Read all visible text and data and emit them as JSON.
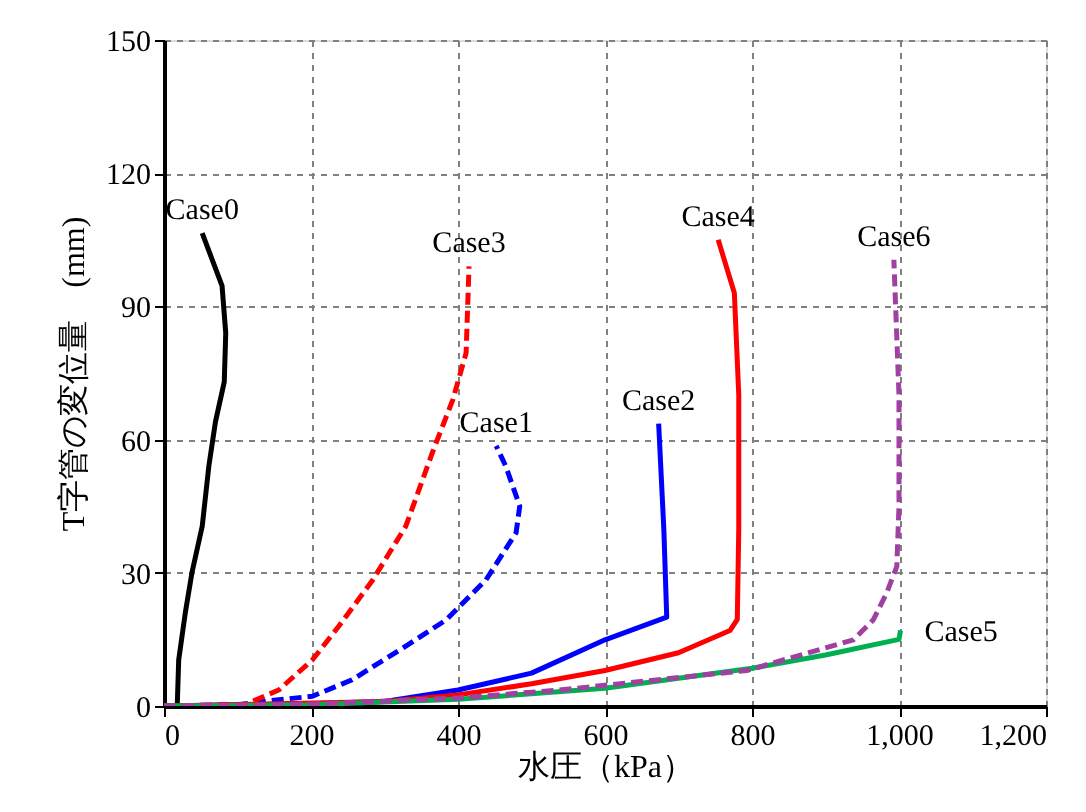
{
  "chart_data": {
    "type": "line",
    "xlabel": "水圧（kPa）",
    "ylabel": "T字管の変位量　(mm)",
    "xlim": [
      0,
      1200
    ],
    "ylim": [
      0,
      150
    ],
    "xticks": [
      0,
      200,
      400,
      600,
      800,
      {
        "value": 1000,
        "label": "1,000"
      },
      {
        "value": 1200,
        "label": "1,200"
      }
    ],
    "yticks": [
      0,
      30,
      60,
      90,
      120,
      150
    ],
    "grid": true,
    "series": [
      {
        "name": "Case0",
        "color": "#000000",
        "line_style": "solid",
        "x": [
          18,
          20,
          29,
          38,
          52,
          61,
          70,
          82,
          84,
          79,
          52
        ],
        "values": [
          0,
          10.4,
          21,
          30,
          40.5,
          54,
          64,
          73,
          84,
          94.6,
          106.5
        ]
      },
      {
        "name": "Case1",
        "color": "#0000ff",
        "line_style": "dashed",
        "x": [
          0,
          100,
          156,
          202,
          256,
          329,
          384,
          438,
          479,
          484,
          465,
          452
        ],
        "values": [
          0,
          0.3,
          1.4,
          2.2,
          5.9,
          13.5,
          19.4,
          28.4,
          39,
          45,
          54,
          58.6
        ]
      },
      {
        "name": "Case2",
        "color": "#0000ff",
        "line_style": "solid",
        "x": [
          0,
          200,
          300,
          400,
          500,
          600,
          684,
          680,
          673
        ],
        "values": [
          0,
          0.5,
          1,
          3.6,
          7.4,
          14.9,
          20,
          40,
          63.6
        ]
      },
      {
        "name": "Case3",
        "color": "#ff0000",
        "line_style": "dashed",
        "x": [
          0,
          110,
          156,
          202,
          238,
          284,
          329,
          365,
          393,
          411,
          415
        ],
        "values": [
          0,
          0.3,
          3.6,
          10.4,
          18,
          28.4,
          40.5,
          57,
          69,
          79.5,
          99
        ]
      },
      {
        "name": "Case4",
        "color": "#ff0000",
        "line_style": "solid",
        "x": [
          0,
          300,
          400,
          500,
          600,
          700,
          770,
          780,
          782,
          782,
          776,
          754
        ],
        "values": [
          0,
          1,
          2.5,
          5,
          8,
          12,
          17,
          19.5,
          40,
          70,
          93,
          105
        ]
      },
      {
        "name": "Case5",
        "color": "#00b050",
        "line_style": "solid",
        "x": [
          0,
          200,
          400,
          600,
          800,
          900,
          1000,
          1002
        ],
        "values": [
          0,
          0.3,
          1.5,
          4,
          8.5,
          11.5,
          15,
          17
        ]
      },
      {
        "name": "Case6",
        "color": "#a040a0",
        "line_style": "dashed",
        "x": [
          0,
          200,
          400,
          538,
          793,
          938,
          965,
          983,
          997,
          1000,
          1000,
          993
        ],
        "values": [
          0,
          0.4,
          1.8,
          3.6,
          8,
          14.9,
          19.4,
          25.4,
          31.4,
          45,
          70,
          100.5
        ]
      }
    ]
  }
}
